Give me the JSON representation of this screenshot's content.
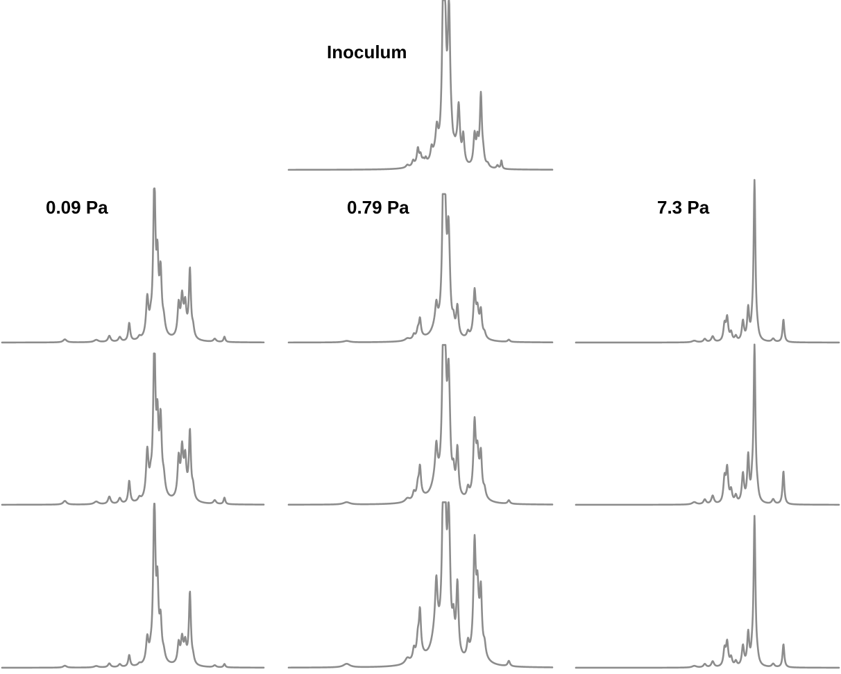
{
  "chart_data": {
    "type": "line",
    "line_color": "#8c8c8c",
    "x_range": [
      0,
      100
    ],
    "y_range": [
      0,
      1
    ],
    "axes_visible": false,
    "grid": false,
    "legend": "none",
    "x_note": "x is relative position across each trace (0 = left end, 100 = right end); y is relative peak height (1 = tallest peak in the figure)",
    "panels": [
      {
        "label": "Inoculum",
        "peaks": [
          {
            "x": 45.0,
            "h": 0.015,
            "w": 0.6
          },
          {
            "x": 47.2,
            "h": 0.03,
            "w": 0.45
          },
          {
            "x": 49.0,
            "h": 0.06,
            "w": 0.5
          },
          {
            "x": 50.0,
            "h": 0.045,
            "w": 0.45
          },
          {
            "x": 49.8,
            "h": 0.025,
            "w": 3.0
          },
          {
            "x": 55.8,
            "h": 0.06,
            "w": 2.0
          },
          {
            "x": 49.0,
            "h": 0.03,
            "w": 0.35
          },
          {
            "x": 51.1,
            "h": 0.015,
            "w": 0.35
          },
          {
            "x": 52.0,
            "h": 0.025,
            "w": 0.35
          },
          {
            "x": 54.2,
            "h": 0.065,
            "w": 0.45
          },
          {
            "x": 56.2,
            "h": 0.14,
            "w": 0.55
          },
          {
            "x": 59.3,
            "h": 0.52,
            "w": 0.65
          },
          {
            "x": 60.8,
            "h": 0.2,
            "w": 0.5
          },
          {
            "x": 61.8,
            "h": 0.06,
            "w": 0.5
          },
          {
            "x": 62.8,
            "h": 0.04,
            "w": 0.5
          },
          {
            "x": 63.5,
            "h": 0.04,
            "w": 0.5
          },
          {
            "x": 64.3,
            "h": 0.04,
            "w": 0.5
          },
          {
            "x": 58.7,
            "h": 1.0,
            "w": 0.55
          },
          {
            "x": 60.8,
            "h": 0.66,
            "w": 0.6
          },
          {
            "x": 64.5,
            "h": 0.3,
            "w": 0.55
          },
          {
            "x": 66.2,
            "h": 0.12,
            "w": 0.45
          },
          {
            "x": 66.3,
            "h": 0.05,
            "w": 0.6
          },
          {
            "x": 70.5,
            "h": 0.18,
            "w": 0.5
          },
          {
            "x": 71.6,
            "h": 0.14,
            "w": 0.5
          },
          {
            "x": 72.9,
            "h": 0.42,
            "w": 0.45
          },
          {
            "x": 73.8,
            "h": 0.06,
            "w": 0.5
          },
          {
            "x": 75.5,
            "h": 0.02,
            "w": 0.6
          },
          {
            "x": 79.2,
            "h": 0.02,
            "w": 0.45
          },
          {
            "x": 80.7,
            "h": 0.05,
            "w": 0.3
          }
        ]
      },
      {
        "label": "0.09 Pa",
        "peaks": [
          {
            "x": 24.0,
            "h": 0.02,
            "w": 0.8
          },
          {
            "x": 36.0,
            "h": 0.015,
            "w": 1.0
          },
          {
            "x": 41.0,
            "h": 0.04,
            "w": 0.6
          },
          {
            "x": 45.0,
            "h": 0.03,
            "w": 0.6
          },
          {
            "x": 48.6,
            "h": 0.12,
            "w": 0.45
          },
          {
            "x": 52.5,
            "h": 0.02,
            "w": 0.6
          },
          {
            "x": 55.5,
            "h": 0.25,
            "w": 0.55
          },
          {
            "x": 56.8,
            "h": 0.06,
            "w": 0.5
          },
          {
            "x": 58.2,
            "h": 1.0,
            "w": 0.5
          },
          {
            "x": 59.4,
            "h": 0.4,
            "w": 0.45
          },
          {
            "x": 60.6,
            "h": 0.37,
            "w": 0.5
          },
          {
            "x": 61.8,
            "h": 0.08,
            "w": 0.6
          },
          {
            "x": 59.5,
            "h": 0.06,
            "w": 2.5
          },
          {
            "x": 67.5,
            "h": 0.2,
            "w": 0.5
          },
          {
            "x": 68.8,
            "h": 0.22,
            "w": 0.5
          },
          {
            "x": 70.0,
            "h": 0.17,
            "w": 0.5
          },
          {
            "x": 71.8,
            "h": 0.44,
            "w": 0.45
          },
          {
            "x": 73.0,
            "h": 0.06,
            "w": 0.5
          },
          {
            "x": 69.5,
            "h": 0.06,
            "w": 2.0
          },
          {
            "x": 81.3,
            "h": 0.02,
            "w": 0.6
          },
          {
            "x": 85.0,
            "h": 0.035,
            "w": 0.4
          }
        ]
      },
      {
        "label": "0.79 Pa",
        "peaks": [
          {
            "x": 22.0,
            "h": 0.01,
            "w": 1.5
          },
          {
            "x": 45.0,
            "h": 0.015,
            "w": 1.0
          },
          {
            "x": 47.5,
            "h": 0.03,
            "w": 0.5
          },
          {
            "x": 49.0,
            "h": 0.05,
            "w": 0.5
          },
          {
            "x": 49.8,
            "h": 0.12,
            "w": 0.45
          },
          {
            "x": 50.0,
            "h": 0.02,
            "w": 3.0
          },
          {
            "x": 55.8,
            "h": 0.08,
            "w": 1.8
          },
          {
            "x": 56.0,
            "h": 0.13,
            "w": 0.5
          },
          {
            "x": 59.4,
            "h": 0.5,
            "w": 0.6
          },
          {
            "x": 61.0,
            "h": 0.12,
            "w": 0.5
          },
          {
            "x": 62.5,
            "h": 0.08,
            "w": 0.5
          },
          {
            "x": 59.6,
            "h": 0.04,
            "w": 2.5
          },
          {
            "x": 58.7,
            "h": 1.0,
            "w": 0.55
          },
          {
            "x": 60.6,
            "h": 0.56,
            "w": 0.55
          },
          {
            "x": 64.0,
            "h": 0.2,
            "w": 0.5
          },
          {
            "x": 68.0,
            "h": 0.04,
            "w": 0.5
          },
          {
            "x": 70.5,
            "h": 0.28,
            "w": 0.5
          },
          {
            "x": 71.6,
            "h": 0.12,
            "w": 0.5
          },
          {
            "x": 72.9,
            "h": 0.15,
            "w": 0.45
          },
          {
            "x": 74.3,
            "h": 0.03,
            "w": 0.5
          },
          {
            "x": 71.7,
            "h": 0.08,
            "w": 1.8
          },
          {
            "x": 83.5,
            "h": 0.015,
            "w": 0.5
          }
        ]
      },
      {
        "label": "7.3 Pa",
        "peaks": [
          {
            "x": 45.0,
            "h": 0.01,
            "w": 1.0
          },
          {
            "x": 49.0,
            "h": 0.02,
            "w": 0.6
          },
          {
            "x": 52.0,
            "h": 0.035,
            "w": 0.6
          },
          {
            "x": 56.5,
            "h": 0.1,
            "w": 0.5
          },
          {
            "x": 57.5,
            "h": 0.14,
            "w": 0.5
          },
          {
            "x": 59.0,
            "h": 0.05,
            "w": 0.5
          },
          {
            "x": 60.8,
            "h": 0.03,
            "w": 0.5
          },
          {
            "x": 63.5,
            "h": 0.12,
            "w": 0.5
          },
          {
            "x": 65.5,
            "h": 0.19,
            "w": 0.45
          },
          {
            "x": 67.0,
            "h": 0.05,
            "w": 0.4
          },
          {
            "x": 67.9,
            "h": 0.98,
            "w": 0.42
          },
          {
            "x": 69.0,
            "h": 0.03,
            "w": 0.5
          },
          {
            "x": 75.0,
            "h": 0.02,
            "w": 0.6
          },
          {
            "x": 78.9,
            "h": 0.14,
            "w": 0.4
          }
        ]
      }
    ],
    "rows": [
      {
        "label": "Inoculum",
        "trace": 0
      },
      {
        "label": "0.09 Pa",
        "trace": 1
      },
      {
        "label": "0.79 Pa",
        "trace": 2
      },
      {
        "label": "7.3 Pa",
        "trace": 3
      }
    ]
  }
}
